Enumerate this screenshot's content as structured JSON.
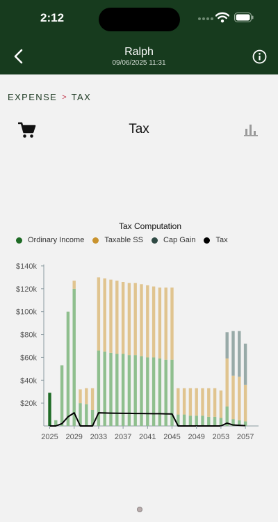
{
  "status_bar": {
    "time": "2:12"
  },
  "nav": {
    "title": "Ralph",
    "subtitle": "09/06/2025 11:31"
  },
  "breadcrumb": {
    "parent": "EXPENSE",
    "separator": ">",
    "current": "TAX"
  },
  "page": {
    "title": "Tax"
  },
  "colors": {
    "header": "#173b1e",
    "ordinary_income": "#8fbf8e",
    "taxable_ss": "#e0c48f",
    "cap_gain": "#98aaa8",
    "tax": "#000000",
    "highlight": "#1f6b26"
  },
  "chart_data": {
    "type": "bar",
    "title": "Tax Computation",
    "legend": [
      {
        "name": "Ordinary Income",
        "color": "#1f6b26"
      },
      {
        "name": "Taxable SS",
        "color": "#c9932e"
      },
      {
        "name": "Cap Gain",
        "color": "#2f4a44"
      },
      {
        "name": "Tax",
        "color": "#000000"
      }
    ],
    "legend_position": "top",
    "x": [
      2025,
      2026,
      2027,
      2028,
      2029,
      2030,
      2031,
      2032,
      2033,
      2034,
      2035,
      2036,
      2037,
      2038,
      2039,
      2040,
      2041,
      2042,
      2043,
      2044,
      2045,
      2046,
      2047,
      2048,
      2049,
      2050,
      2051,
      2052,
      2053,
      2054,
      2055,
      2056,
      2057
    ],
    "x_tick_labels": [
      "2025",
      "2029",
      "2033",
      "2037",
      "2041",
      "2045",
      "2049",
      "2053",
      "2057"
    ],
    "ylim": [
      0,
      140000
    ],
    "y_tick_labels": [
      "$20k",
      "$40k",
      "$60k",
      "$80k",
      "$100k",
      "$120k",
      "$140k"
    ],
    "highlighted_x": 2025,
    "series": [
      {
        "name": "Ordinary Income",
        "type": "bar",
        "stack": "income",
        "values": [
          29000,
          5000,
          53000,
          100000,
          120000,
          20000,
          19000,
          14000,
          66000,
          65000,
          64000,
          63000,
          63000,
          62000,
          62000,
          61000,
          60000,
          60000,
          59000,
          58000,
          58000,
          10000,
          10000,
          9000,
          9000,
          9000,
          8000,
          8000,
          7000,
          17000,
          6000,
          5000,
          4000
        ]
      },
      {
        "name": "Taxable SS",
        "type": "bar",
        "stack": "income",
        "values": [
          0,
          0,
          0,
          0,
          7000,
          12000,
          14000,
          19000,
          64000,
          64000,
          64000,
          64000,
          63000,
          63000,
          63000,
          63000,
          63000,
          62000,
          62000,
          63000,
          63000,
          23000,
          23000,
          24000,
          24000,
          24000,
          25000,
          25000,
          24000,
          42000,
          38000,
          38000,
          32000
        ]
      },
      {
        "name": "Cap Gain",
        "type": "bar",
        "stack": "income",
        "values": [
          0,
          0,
          0,
          0,
          0,
          0,
          0,
          0,
          0,
          0,
          0,
          0,
          0,
          0,
          0,
          0,
          0,
          0,
          0,
          0,
          0,
          0,
          0,
          0,
          0,
          0,
          0,
          0,
          0,
          23000,
          39000,
          40000,
          36000
        ]
      },
      {
        "name": "Tax",
        "type": "line",
        "values": [
          0,
          0,
          2000,
          8000,
          11500,
          0,
          0,
          0,
          11500,
          11300,
          11200,
          11100,
          11000,
          11000,
          10900,
          10900,
          10800,
          10700,
          10700,
          10600,
          10500,
          0,
          0,
          0,
          0,
          0,
          0,
          0,
          0,
          2500,
          800,
          500,
          200
        ]
      }
    ]
  }
}
